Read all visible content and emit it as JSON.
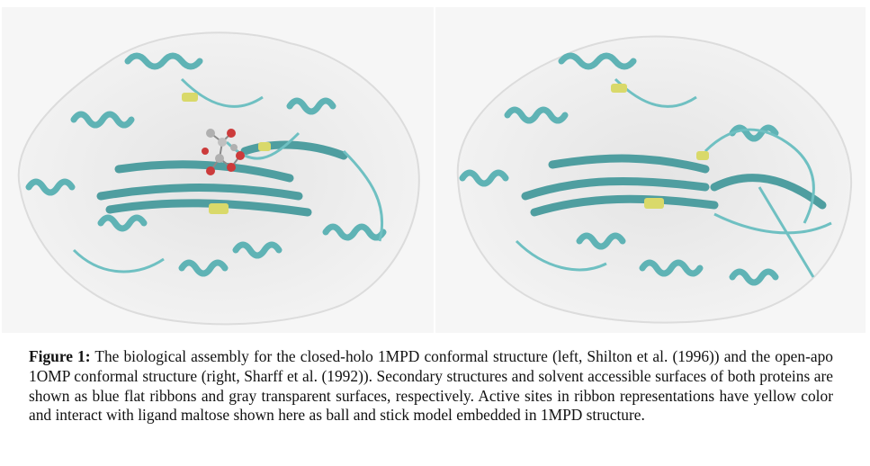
{
  "figure": {
    "panels": [
      {
        "subject": "closed-holo 1MPD protein structure with bound maltose ligand",
        "ribbon_color": "#5fb3b5",
        "active_site_color": "#d9d96a",
        "surface_color": "#eaeaea",
        "has_ligand": true
      },
      {
        "subject": "open-apo 1OMP protein structure",
        "ribbon_color": "#5fb3b5",
        "active_site_color": "#d9d96a",
        "surface_color": "#eaeaea",
        "has_ligand": false
      }
    ],
    "caption_label": "Figure 1:",
    "caption_text": "The biological assembly for the closed-holo 1MPD conformal structure (left, Shilton et al. (1996)) and the open-apo 1OMP conformal structure (right, Sharff et al. (1992)). Secondary structures and solvent accessible surfaces of both proteins are shown as blue flat ribbons and gray transparent surfaces, respectively. Active sites in ribbon representations have yellow color and interact with ligand maltose shown here as ball and stick model embedded in 1MPD structure."
  }
}
